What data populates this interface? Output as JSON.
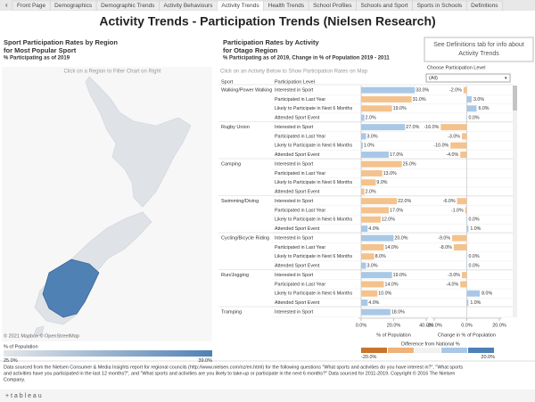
{
  "tabs": [
    "Front Page",
    "Demographics",
    "Demographic Trends",
    "Activity Behaviours",
    "Activity Trends",
    "Health Trends",
    "School Profiles",
    "Schools and Sport",
    "Sports in Schools",
    "Definitions"
  ],
  "active_tab": 4,
  "title": "Activity Trends - Participation Trends (Nielsen Research)",
  "info_box": [
    "See Definitions tab for info about",
    "Activity Trends"
  ],
  "map_panel": {
    "title": [
      "Sport Participation Rates by Region",
      "for Most Popular Sport"
    ],
    "subtitle": "% Participating as of 2019",
    "hint": "Click on a Region to Filter Chart on Right",
    "credit": "© 2021 Mapbox © OpenStreetMap",
    "legend": {
      "title": "% of Population",
      "min": {
        "value": 25,
        "label": "25.0%"
      },
      "max": {
        "value": 39,
        "label": "39.0%"
      },
      "colors": [
        "#e4e6e9",
        "#4f81b5"
      ]
    }
  },
  "activity_panel": {
    "title": [
      "Participation Rates by Activity",
      "for Otago Region"
    ],
    "subtitle": "% Participating as of 2019, Change in % of Population 2019 - 2011",
    "hint": "Click on an Activity Below to Show Participation Rates on Map",
    "filter_label": "Choose Participation Level",
    "filter_value": "(All)",
    "col_sport": "Sport",
    "col_level": "Participation Level",
    "diff_legend": {
      "title": "Difference from National %",
      "min": {
        "value": -20,
        "label": "-20.0%"
      },
      "max": {
        "value": 20,
        "label": "20.0%"
      },
      "colors": [
        "#c8742c",
        "#eeb27a",
        "#f1f1f1",
        "#a9c8e6",
        "#4f81b5"
      ]
    }
  },
  "chart_data": [
    {
      "type": "bar",
      "x_label": "% of Population",
      "categories": [
        "Interested in Sport",
        "Participated in Last Year",
        "Likely to Participate in Next 6 Months",
        "Attended Sport Event"
      ],
      "xlim": [
        0,
        40
      ],
      "xticks": [
        {
          "value": 0,
          "label": "0.0%"
        },
        {
          "value": 20,
          "label": "20.0%"
        },
        {
          "value": 40,
          "label": "40.0%"
        }
      ],
      "series": [
        {
          "name": "Walking/Power Walking",
          "values": [
            33,
            31,
            19,
            2
          ],
          "value_labels": [
            "33.0%",
            "31.0%",
            "19.0%",
            "2.0%"
          ],
          "colors": [
            "#a9c8e6",
            "#f4c28c",
            "#f4c28c",
            "#a9c8e6"
          ]
        },
        {
          "name": "Rugby Union",
          "values": [
            27,
            3,
            1,
            17
          ],
          "value_labels": [
            "27.0%",
            "3.0%",
            "1.0%",
            "17.0%"
          ],
          "colors": [
            "#a9c8e6",
            "#a9c8e6",
            "#a9c8e6",
            "#a9c8e6"
          ]
        },
        {
          "name": "Camping",
          "values": [
            25,
            13,
            9,
            2
          ],
          "value_labels": [
            "25.0%",
            "13.0%",
            "9.0%",
            "2.0%"
          ],
          "colors": [
            "#f4c28c",
            "#f4c28c",
            "#f4c28c",
            "#f4c28c"
          ]
        },
        {
          "name": "Swimming/Diving",
          "values": [
            22,
            17,
            12,
            4
          ],
          "value_labels": [
            "22.0%",
            "17.0%",
            "12.0%",
            "4.0%"
          ],
          "colors": [
            "#f4c28c",
            "#f4c28c",
            "#f4c28c",
            "#a9c8e6"
          ]
        },
        {
          "name": "Cycling/Bicycle Riding",
          "values": [
            20,
            14,
            8,
            3
          ],
          "value_labels": [
            "20.0%",
            "14.0%",
            "8.0%",
            "3.0%"
          ],
          "colors": [
            "#a9c8e6",
            "#f4c28c",
            "#f4c28c",
            "#a9c8e6"
          ]
        },
        {
          "name": "Run/Jogging",
          "values": [
            19,
            14,
            10,
            4
          ],
          "value_labels": [
            "19.0%",
            "14.0%",
            "10.0%",
            "4.0%"
          ],
          "colors": [
            "#a9c8e6",
            "#f4c28c",
            "#f4c28c",
            "#a9c8e6"
          ]
        },
        {
          "name": "Tramping",
          "values": [
            18,
            null,
            null,
            null
          ],
          "value_labels": [
            "18.0%",
            null,
            null,
            null
          ],
          "colors": [
            "#a9c8e6",
            "#a9c8e6",
            "#a9c8e6",
            "#a9c8e6"
          ]
        }
      ]
    },
    {
      "type": "diverging-bar",
      "x_label": "Change in % of Population",
      "xlim": [
        -20,
        20
      ],
      "xticks": [
        {
          "value": -20,
          "label": "-20.0%"
        },
        {
          "value": 0,
          "label": "0.0%"
        },
        {
          "value": 20,
          "label": "20.0%"
        }
      ],
      "negative_color": "#f4c28c",
      "positive_color": "#a9c8e6",
      "series": [
        {
          "name": "Walking/Power Walking",
          "values": [
            -2,
            3,
            6,
            0
          ],
          "value_labels": [
            "-2.0%",
            "3.0%",
            "6.0%",
            "0.0%"
          ]
        },
        {
          "name": "Rugby Union",
          "values": [
            -16,
            -3,
            -10,
            -4
          ],
          "value_labels": [
            "-16.0%",
            "-3.0%",
            "-10.0%",
            "-4.0%"
          ]
        },
        {
          "name": "Camping",
          "values": [
            null,
            null,
            null,
            null
          ],
          "value_labels": [
            null,
            null,
            null,
            null
          ]
        },
        {
          "name": "Swimming/Diving",
          "values": [
            -6,
            -1,
            0,
            1
          ],
          "value_labels": [
            "-6.0%",
            "-1.0%",
            "0.0%",
            "1.0%"
          ]
        },
        {
          "name": "Cycling/Bicycle Riding",
          "values": [
            -9,
            -8,
            0,
            0
          ],
          "value_labels": [
            "-9.0%",
            "-8.0%",
            "0.0%",
            "0.0%"
          ]
        },
        {
          "name": "Run/Jogging",
          "values": [
            -3,
            -4,
            8,
            1
          ],
          "value_labels": [
            "-3.0%",
            "-4.0%",
            "8.0%",
            "1.0%"
          ]
        },
        {
          "name": "Tramping",
          "values": [
            null,
            null,
            null,
            null
          ],
          "value_labels": [
            null,
            null,
            null,
            null
          ]
        }
      ]
    }
  ],
  "source": [
    "Data sourced from the Nielsen Consumer & Media Insights report for regional councils (http://www.nielsen.com/nz/en.html) for the following questions \"What sports and activities do you have interest in?\", \"What sports",
    "and activities have you participated in the last 12 months?\", and \"What sports and activities are you likely to take-up or participate in the next 6 months?\" Data sourced for 2011-2019. Copyright © 2016 The Nielsen",
    "Company."
  ],
  "brand": "+ t a b l e a u"
}
